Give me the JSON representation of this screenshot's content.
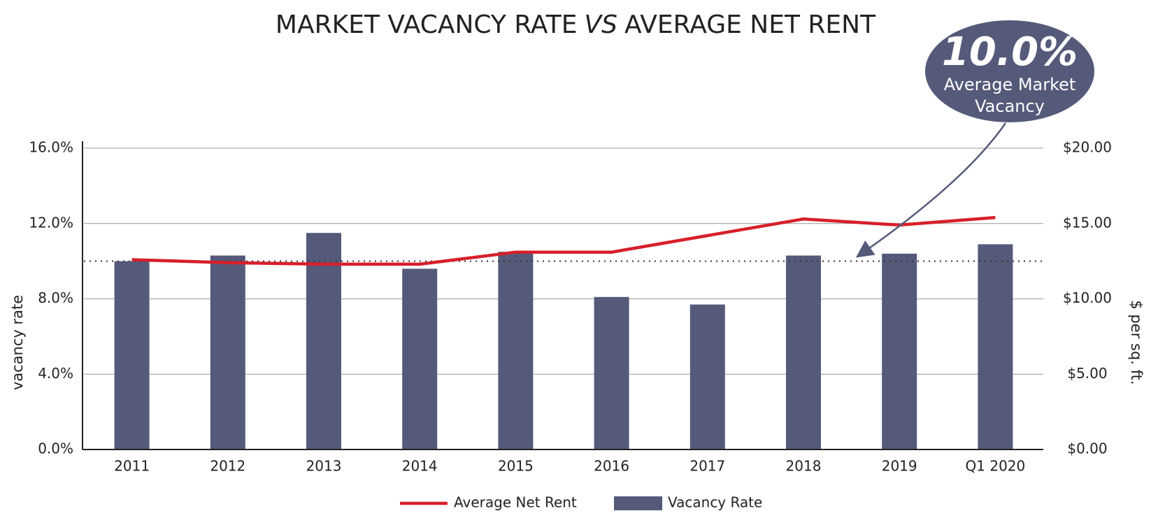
{
  "chart_data": {
    "type": "bar_line",
    "title": [
      "MARKET VACANCY RATE",
      "VS",
      "AVERAGE NET RENT"
    ],
    "categories": [
      "2011",
      "2012",
      "2013",
      "2014",
      "2015",
      "2016",
      "2017",
      "2018",
      "2019",
      "Q1 2020"
    ],
    "series": [
      {
        "name": "Vacancy Rate",
        "type": "bar",
        "color": "#555a7a",
        "values": [
          10.0,
          10.3,
          11.5,
          9.6,
          10.5,
          8.1,
          7.7,
          10.3,
          10.4,
          10.9
        ]
      },
      {
        "name": "Average Net Rent",
        "type": "line",
        "color": "#d71f2a",
        "axis": "y2",
        "values": [
          12.6,
          12.4,
          12.3,
          12.3,
          13.1,
          13.1,
          14.2,
          15.3,
          14.9,
          15.4
        ]
      }
    ],
    "ylabel": "vacancy rate",
    "y2label": "$ per sq. ft.",
    "ylim": [
      0,
      16
    ],
    "yticks": [
      {
        "value": 0,
        "label": "0.0%"
      },
      {
        "value": 4,
        "label": "4.0%"
      },
      {
        "value": 8,
        "label": "8.0%"
      },
      {
        "value": 12,
        "label": "12.0%"
      },
      {
        "value": 16,
        "label": "16.0%"
      }
    ],
    "y2lim": [
      0,
      20
    ],
    "y2ticks": [
      {
        "value": 0,
        "label": "$0.00"
      },
      {
        "value": 5,
        "label": "$5.00"
      },
      {
        "value": 10,
        "label": "$10.00"
      },
      {
        "value": 15,
        "label": "$15.00"
      },
      {
        "value": 20,
        "label": "$20.00"
      }
    ],
    "grid": true,
    "annotation": {
      "value": 10,
      "label": "10.0%",
      "text": [
        "Average Market",
        "Vacancy"
      ]
    }
  }
}
